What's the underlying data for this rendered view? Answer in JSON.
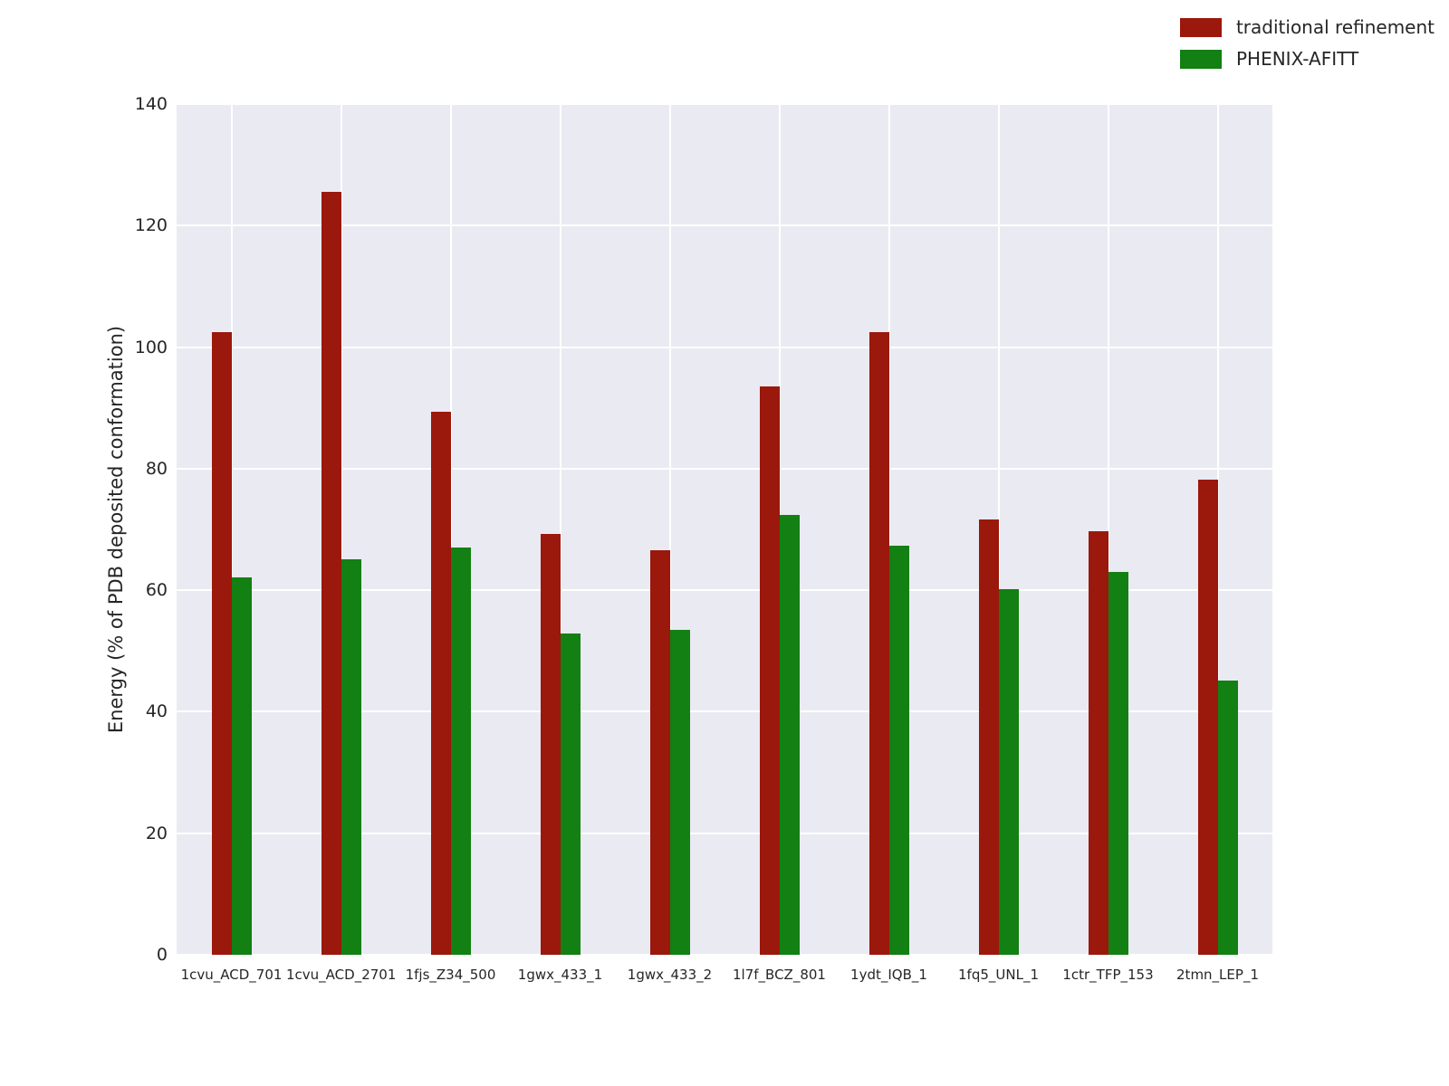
{
  "chart_data": {
    "type": "bar",
    "title": "",
    "xlabel": "",
    "ylabel": "Energy (% of PDB deposited conformation)",
    "ylim": [
      0,
      140
    ],
    "yticks": [
      0,
      20,
      40,
      60,
      80,
      100,
      120,
      140
    ],
    "grid": true,
    "legend_position": "upper right",
    "plot_background_color": "#eaeaf2",
    "grid_color": "#ffffff",
    "categories": [
      "1cvu_ACD_701",
      "1cvu_ACD_2701",
      "1fjs_Z34_500",
      "1gwx_433_1",
      "1gwx_433_2",
      "1l7f_BCZ_801",
      "1ydt_IQB_1",
      "1fq5_UNL_1",
      "1ctr_TFP_153",
      "2tmn_LEP_1"
    ],
    "series": [
      {
        "name": "traditional refinement",
        "color": "#9b180c",
        "values": [
          102.5,
          125.5,
          89.3,
          69.3,
          66.6,
          93.5,
          102.5,
          71.6,
          69.7,
          78.2
        ]
      },
      {
        "name": "PHENIX-AFITT",
        "color": "#128012",
        "values": [
          62.1,
          65.1,
          67.0,
          52.9,
          53.5,
          72.4,
          67.3,
          60.1,
          63.0,
          45.2
        ]
      }
    ]
  }
}
